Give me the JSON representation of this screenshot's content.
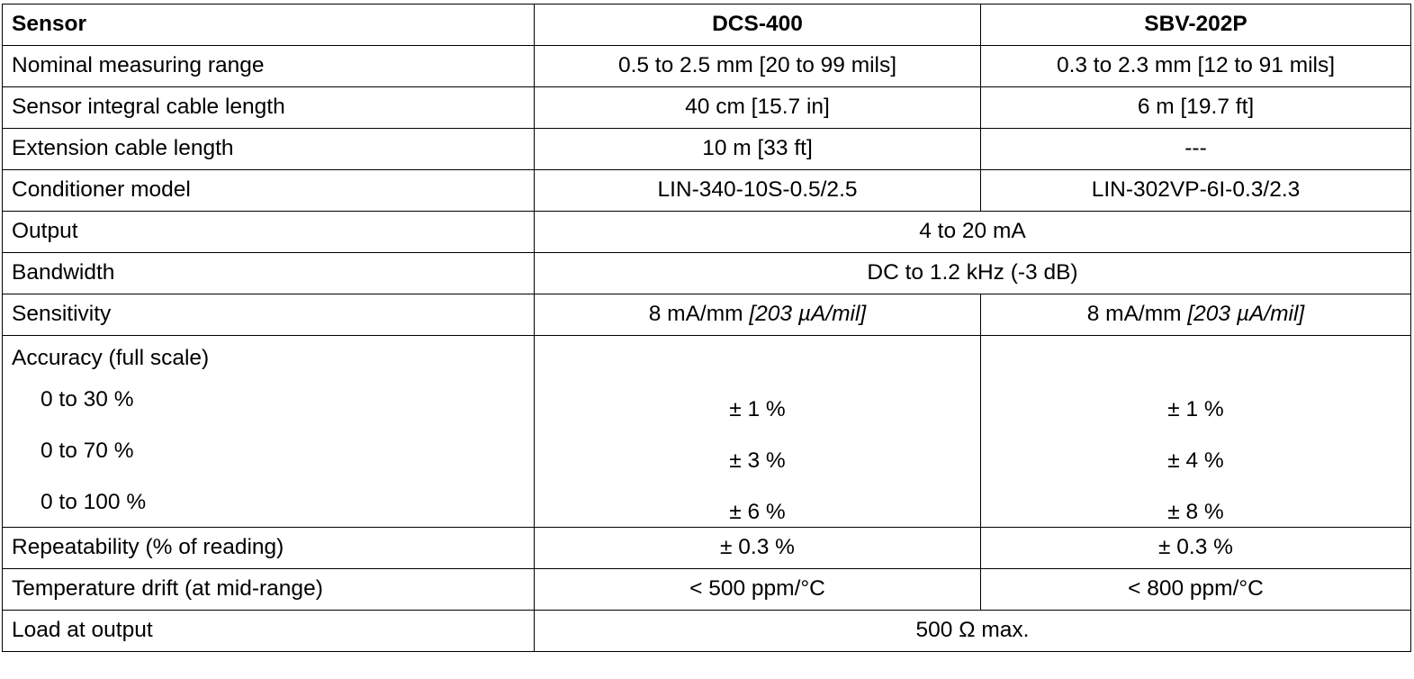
{
  "table": {
    "header": {
      "label": "Sensor",
      "col1": "DCS-400",
      "col2": "SBV-202P"
    },
    "rows": [
      {
        "label": "Nominal measuring range",
        "col1": "0.5 to 2.5 mm [20 to 99 mils]",
        "col2": "0.3 to 2.3 mm [12 to 91 mils]"
      },
      {
        "label": "Sensor integral cable length",
        "col1": "40 cm [15.7 in]",
        "col2": "6 m [19.7 ft]"
      },
      {
        "label": "Extension cable length",
        "col1": "10 m [33 ft]",
        "col2": "---"
      },
      {
        "label": "Conditioner model",
        "col1": "LIN-340-10S-0.5/2.5",
        "col2": "LIN-302VP-6I-0.3/2.3"
      },
      {
        "label": "Output",
        "merged": "4 to 20 mA"
      },
      {
        "label": "Bandwidth",
        "merged": "DC to 1.2 kHz (-3 dB)"
      },
      {
        "label": "Sensitivity",
        "col1_main": "8 mA/mm ",
        "col1_ital": "[203 µA/mil]",
        "col2_main": "8 mA/mm ",
        "col2_ital": "[203 µA/mil]"
      }
    ],
    "accuracy": {
      "label": "Accuracy (full scale)",
      "sub_labels": [
        "0 to 30 %",
        "0 to 70 %",
        "0 to 100 %"
      ],
      "col1": [
        "± 1 %",
        "± 3 %",
        "± 6 %"
      ],
      "col2": [
        "± 1 %",
        "± 4 %",
        "± 8 %"
      ]
    },
    "rows_after": [
      {
        "label": "Repeatability (% of reading)",
        "col1": "± 0.3 %",
        "col2": "± 0.3 %"
      },
      {
        "label": "Temperature drift (at mid-range)",
        "col1": "< 500 ppm/°C",
        "col2": "< 800 ppm/°C"
      },
      {
        "label": "Load at output",
        "merged": "500 Ω max."
      }
    ]
  }
}
